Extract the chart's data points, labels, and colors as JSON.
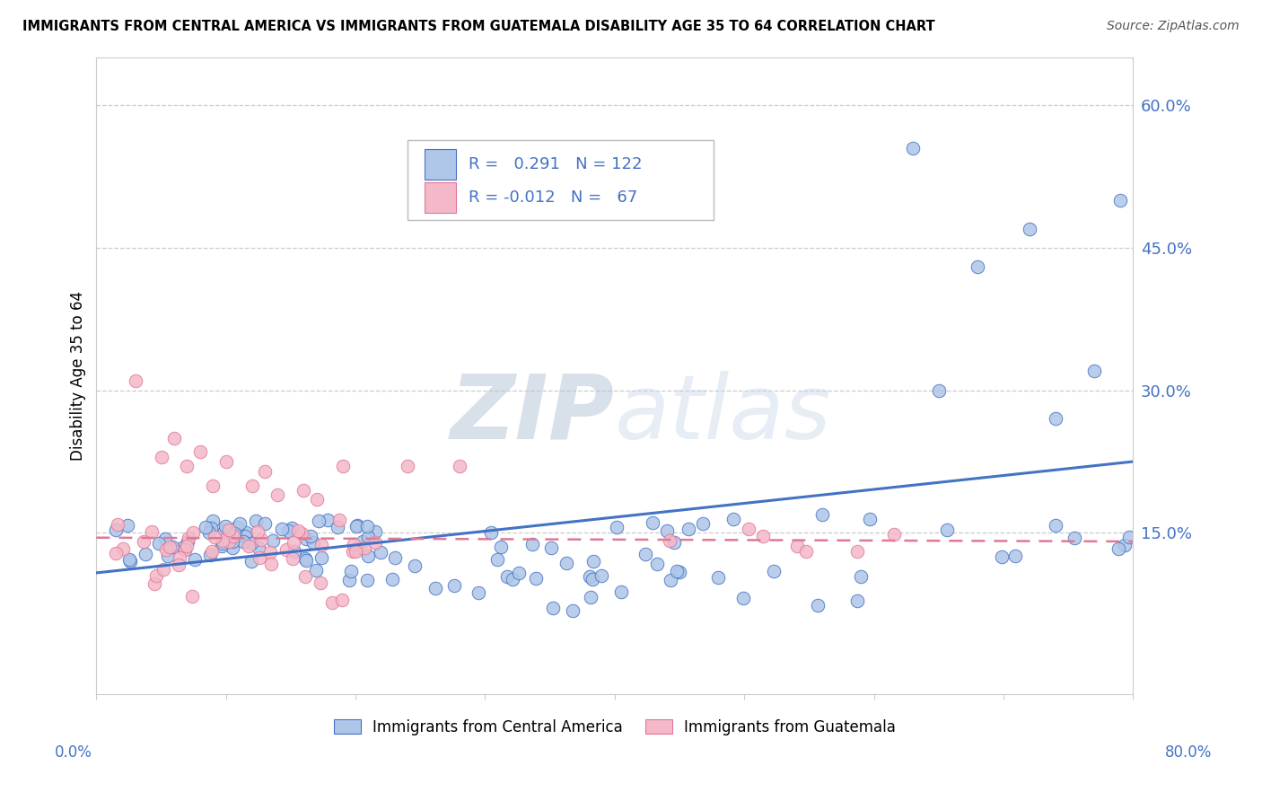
{
  "title": "IMMIGRANTS FROM CENTRAL AMERICA VS IMMIGRANTS FROM GUATEMALA DISABILITY AGE 35 TO 64 CORRELATION CHART",
  "source": "Source: ZipAtlas.com",
  "ylabel": "Disability Age 35 to 64",
  "yticks": [
    0.0,
    0.15,
    0.3,
    0.45,
    0.6
  ],
  "ytick_labels": [
    "",
    "15.0%",
    "30.0%",
    "45.0%",
    "60.0%"
  ],
  "xlim": [
    0.0,
    0.8
  ],
  "ylim": [
    -0.02,
    0.65
  ],
  "legend1_label": "Immigrants from Central America",
  "legend2_label": "Immigrants from Guatemala",
  "R1": 0.291,
  "N1": 122,
  "R2": -0.012,
  "N2": 67,
  "color_blue": "#aec6e8",
  "color_pink": "#f4b8c8",
  "line_blue": "#4472c4",
  "line_pink": "#e07898",
  "grid_color": "#cccccc",
  "watermark_color": "#d0dcea"
}
